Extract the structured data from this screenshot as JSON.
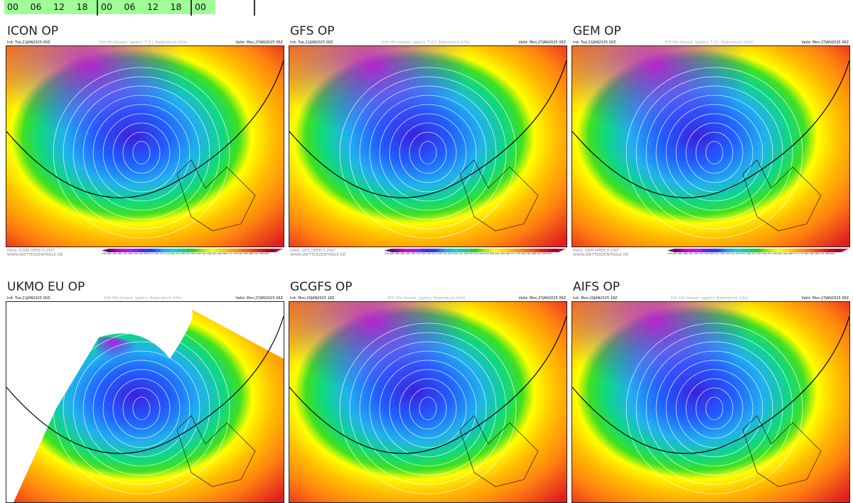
{
  "timebar": {
    "cells": [
      "00",
      "06",
      "12",
      "18",
      "00",
      "06",
      "12",
      "18",
      "00"
    ],
    "color": "#9ffe96"
  },
  "panels": [
    {
      "title": "ICON OP",
      "init": "Init: Tue,21JAN2025 00Z",
      "field": "500 hPa Geopot. (gpdm), T (C), Bodendruck (hPa)",
      "valid": "Valid: Mon,27JAN2025 06Z",
      "data": "Data: ICON OPER 0.250°",
      "site": "WWW.WETTERZENTRALE.DE",
      "style": "full"
    },
    {
      "title": "GFS OP",
      "init": "Init: Tue,21JAN2025 00Z",
      "field": "500 hPa Geopot. (gpdm), T (C), Bodendruck (hPa)",
      "valid": "Valid: Mon,27JAN2025 06Z",
      "data": "Data: GFS OPER 0.250°",
      "site": "WWW.WETTERZENTRALE.DE",
      "style": "full"
    },
    {
      "title": "GEM OP",
      "init": "Init: Tue,21JAN2025 00Z",
      "field": "500 hPa Geopot. (gpdm), T (C), Bodendruck (hPa)",
      "valid": "Valid: Mon,27JAN2025 06Z",
      "data": "Data: GEM OPER 0.150°",
      "site": "WWW.WETTERZENTRALE.DE",
      "style": "full"
    },
    {
      "title": "UKMO EU OP",
      "init": "Init: Tue,21JAN2025 00Z",
      "field": "500 hPa Geopot. (gpdm), Bodendruck (hPa)",
      "valid": "Valid: Mon,27JAN2025 06Z",
      "style": "ukmo"
    },
    {
      "title": "GCGFS OP",
      "init": "Init: Mon,20JAN2025 18Z",
      "field": "500 hPa Geopot. (gpdm), Bodendruck (hPa)",
      "valid": "Valid: Mon,27JAN2025 06Z",
      "style": "full"
    },
    {
      "title": "AIFS OP",
      "init": "Init: Mon,20JAN2025 18Z",
      "field": "500 hPa Geopot. (gpdm), Bodendruck (hPa)",
      "valid": "Valid: Mon,27JAN2025 06Z",
      "style": "full"
    }
  ],
  "colorbar_ticks": "476 480 484 488 492 496 500 504 508 512 516 520 524 528 532 536 540 544 548 552 556 560 564 568 572 576 580 584 588 592 596 600"
}
